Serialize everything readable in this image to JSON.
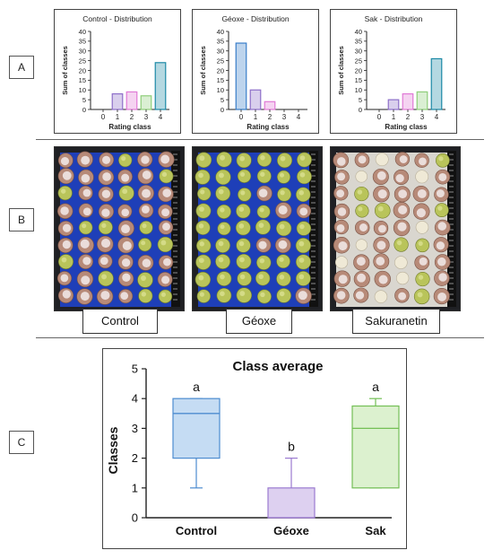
{
  "panels": {
    "a": "A",
    "b": "B",
    "c": "C"
  },
  "chart_data": [
    {
      "type": "bar",
      "title": "Control - Distribution",
      "xlabel": "Rating class",
      "ylabel": "Sum of classes",
      "categories": [
        "0",
        "1",
        "2",
        "3",
        "4"
      ],
      "values": [
        0,
        8,
        9,
        7,
        24
      ],
      "ylim": [
        0,
        40
      ],
      "yticks": [
        "0",
        "5",
        "10",
        "15",
        "20",
        "25",
        "30",
        "35",
        "40"
      ],
      "colors": [
        "#3a7ec9",
        "#8e6fc9",
        "#e07ad6",
        "#8fce7a",
        "#1d8aa6"
      ]
    },
    {
      "type": "bar",
      "title": "Géoxe - Distribution",
      "xlabel": "Rating class",
      "ylabel": "Sum of classes",
      "categories": [
        "0",
        "1",
        "2",
        "3",
        "4"
      ],
      "values": [
        34,
        10,
        4,
        0,
        0
      ],
      "ylim": [
        0,
        40
      ],
      "yticks": [
        "0",
        "5",
        "10",
        "15",
        "20",
        "25",
        "30",
        "35",
        "40"
      ],
      "colors": [
        "#3a7ec9",
        "#8e6fc9",
        "#e07ad6",
        "#8fce7a",
        "#1d8aa6"
      ]
    },
    {
      "type": "bar",
      "title": "Sak - Distribution",
      "xlabel": "Rating class",
      "ylabel": "Sum of classes",
      "categories": [
        "0",
        "1",
        "2",
        "3",
        "4"
      ],
      "values": [
        0,
        5,
        8,
        9,
        26
      ],
      "ylim": [
        0,
        40
      ],
      "yticks": [
        "0",
        "5",
        "10",
        "15",
        "20",
        "25",
        "30",
        "35",
        "40"
      ],
      "colors": [
        "#3a7ec9",
        "#8e6fc9",
        "#e07ad6",
        "#8fce7a",
        "#1d8aa6"
      ]
    },
    {
      "type": "box",
      "title": "Class average",
      "ylabel": "Classes",
      "categories": [
        "Control",
        "Géoxe",
        "Sak"
      ],
      "ylim": [
        0,
        5
      ],
      "yticks": [
        "0",
        "1",
        "2",
        "3",
        "4",
        "5"
      ],
      "boxes": [
        {
          "min": 1,
          "q1": 2,
          "median": 3.5,
          "q3": 4,
          "max": 4,
          "letter": "a",
          "fill": "#c5dcf3",
          "stroke": "#4d8cd0"
        },
        {
          "min": 0,
          "q1": 0,
          "median": 0,
          "q3": 1,
          "max": 2,
          "letter": "b",
          "fill": "#ddd0f0",
          "stroke": "#9b7ad0"
        },
        {
          "min": 1,
          "q1": 1,
          "median": 3,
          "q3": 3.75,
          "max": 4,
          "letter": "a",
          "fill": "#dcf1cf",
          "stroke": "#73bf55"
        }
      ]
    }
  ],
  "photos": [
    {
      "label": "Control",
      "mode": "control"
    },
    {
      "label": "Géoxe",
      "mode": "geoxe"
    },
    {
      "label": "Sakuranetin",
      "mode": "sak"
    }
  ]
}
